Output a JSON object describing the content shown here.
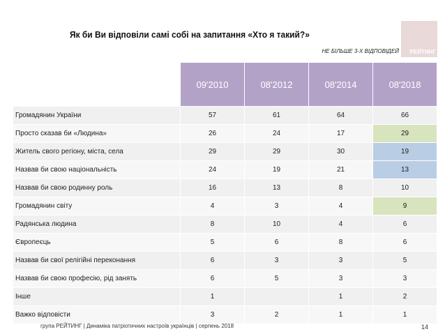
{
  "title": "Як би Ви відповіли самі собі на запитання «Хто я такий?»",
  "subtitle": "НЕ БІЛЬШЕ 3-Х ВІДПОВІДЕЙ",
  "logo_text": "РЕЙТИНГ",
  "headers": [
    "09'2010",
    "08'2012",
    "08'2014",
    "08'2018"
  ],
  "rows": [
    {
      "label": "Громадянин України",
      "values": [
        "57",
        "61",
        "64",
        "66"
      ]
    },
    {
      "label": "Просто сказав би «Людина»",
      "values": [
        "26",
        "24",
        "17",
        "29"
      ],
      "highlight": "green"
    },
    {
      "label": "Житель свого регіону, міста, села",
      "values": [
        "29",
        "29",
        "30",
        "19"
      ],
      "highlight": "blue"
    },
    {
      "label": "Назвав би свою національність",
      "values": [
        "24",
        "19",
        "21",
        "13"
      ],
      "highlight": "blue"
    },
    {
      "label": "Назвав би свою родинну роль",
      "values": [
        "16",
        "13",
        "8",
        "10"
      ]
    },
    {
      "label": "Громадянин світу",
      "values": [
        "4",
        "3",
        "4",
        "9"
      ],
      "highlight": "green"
    },
    {
      "label": "Радянська людина",
      "values": [
        "8",
        "10",
        "4",
        "6"
      ]
    },
    {
      "label": "Європеєць",
      "values": [
        "5",
        "6",
        "8",
        "6"
      ]
    },
    {
      "label": "Назвав би свої релігійні переконання",
      "values": [
        "6",
        "3",
        "3",
        "5"
      ]
    },
    {
      "label": "Назвав би свою професію, рід занять",
      "values": [
        "6",
        "5",
        "3",
        "3"
      ]
    },
    {
      "label": "Інше",
      "values": [
        "1",
        "",
        "1",
        "2"
      ]
    },
    {
      "label": "Важко відповісти",
      "values": [
        "3",
        "2",
        "1",
        "1"
      ]
    }
  ],
  "colors": {
    "header": "#b3a2c8",
    "green": "#d7e4bd",
    "blue": "#b9cde5"
  },
  "footer": "група РЕЙТИНГ  | Динаміка патріотичних настроїв українців |  серпень 2018",
  "page_number": "14"
}
